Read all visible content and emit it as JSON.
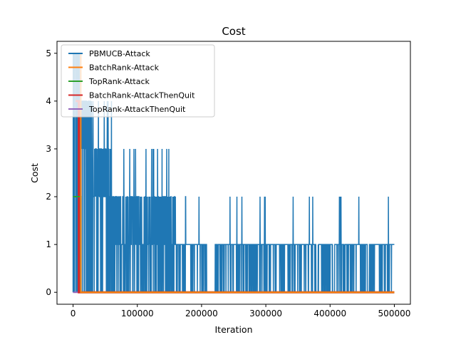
{
  "chart_data": {
    "type": "line",
    "title": "Cost",
    "xlabel": "Iteration",
    "ylabel": "Cost",
    "xlim": [
      -25000,
      525000
    ],
    "ylim": [
      -0.25,
      5.25
    ],
    "xticks": [
      0,
      100000,
      200000,
      300000,
      400000,
      500000
    ],
    "xtick_labels": [
      "0",
      "100000",
      "200000",
      "300000",
      "400000",
      "500000"
    ],
    "yticks": [
      0,
      1,
      2,
      3,
      4,
      5
    ],
    "ytick_labels": [
      "0",
      "1",
      "2",
      "3",
      "4",
      "5"
    ],
    "grid": false,
    "legend_position": "upper-left",
    "series": [
      {
        "name": "PBMUCB-Attack",
        "color": "#1f77b4",
        "x": [
          0,
          500000
        ],
        "y": [
          0,
          1
        ],
        "pattern": "dense oscillation: values 0–5 early, mostly 0–1 after ~150000, spikes to 2 up to ~465000, flat 0 segments near 210000, 380000, 460000"
      },
      {
        "name": "BatchRank-Attack",
        "color": "#ff7f0e",
        "x": [
          0,
          12000,
          12000,
          500000
        ],
        "y": [
          5,
          5,
          0,
          0
        ]
      },
      {
        "name": "TopRank-Attack",
        "color": "#2ca02c",
        "x": [
          0,
          12000,
          12000,
          500000
        ],
        "y": [
          2,
          2,
          0,
          0
        ]
      },
      {
        "name": "BatchRank-AttackThenQuit",
        "color": "#d62728",
        "x": [
          4000,
          9000,
          9000,
          500000
        ],
        "y": [
          4,
          4,
          0,
          0
        ]
      },
      {
        "name": "TopRank-AttackThenQuit",
        "color": "#9467bd",
        "x": [
          0,
          500000
        ],
        "y": [
          0,
          0
        ]
      }
    ]
  }
}
